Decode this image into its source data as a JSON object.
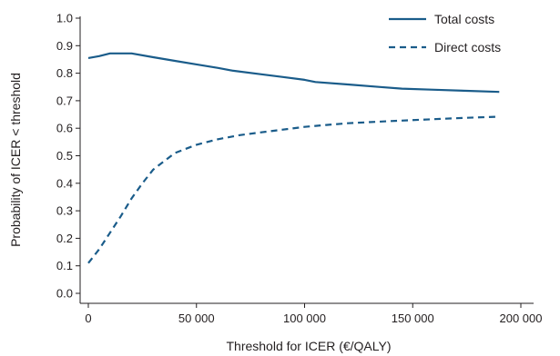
{
  "chart_data": {
    "type": "line",
    "xlabel": "Threshold for ICER (€/QALY)",
    "ylabel": "Probability of ICER < threshold",
    "xlim": [
      0,
      200000
    ],
    "ylim": [
      0,
      1.0
    ],
    "x_ticks": [
      0,
      50000,
      100000,
      150000,
      200000
    ],
    "x_tick_labels": [
      "0",
      "50 000",
      "100 000",
      "150 000",
      "200 000"
    ],
    "y_ticks": [
      0.0,
      0.1,
      0.2,
      0.3,
      0.4,
      0.5,
      0.6,
      0.7,
      0.8,
      0.9,
      1.0
    ],
    "y_tick_labels": [
      "0.0",
      "0.1",
      "0.2",
      "0.3",
      "0.4",
      "0.5",
      "0.6",
      "0.7",
      "0.8",
      "0.9",
      "1.0"
    ],
    "grid": false,
    "legend_position": "top-right",
    "series": [
      {
        "name": "Total costs",
        "style": "solid",
        "color": "#1a5c8a",
        "x": [
          0,
          5000,
          10000,
          20000,
          30000,
          40000,
          50000,
          60000,
          67000,
          80000,
          90000,
          100000,
          105000,
          120000,
          135000,
          145000,
          160000,
          175000,
          190000
        ],
        "y": [
          0.855,
          0.862,
          0.872,
          0.872,
          0.858,
          0.845,
          0.832,
          0.819,
          0.809,
          0.796,
          0.786,
          0.776,
          0.768,
          0.759,
          0.75,
          0.744,
          0.74,
          0.736,
          0.732
        ]
      },
      {
        "name": "Direct costs",
        "style": "dashed",
        "color": "#1a5c8a",
        "x": [
          0,
          5000,
          10000,
          15000,
          20000,
          25000,
          30000,
          40000,
          50000,
          60000,
          70000,
          80000,
          90000,
          100000,
          110000,
          120000,
          140000,
          160000,
          175000,
          190000
        ],
        "y": [
          0.11,
          0.16,
          0.22,
          0.28,
          0.345,
          0.4,
          0.45,
          0.51,
          0.54,
          0.56,
          0.575,
          0.585,
          0.595,
          0.605,
          0.612,
          0.618,
          0.626,
          0.633,
          0.638,
          0.642
        ]
      }
    ]
  }
}
